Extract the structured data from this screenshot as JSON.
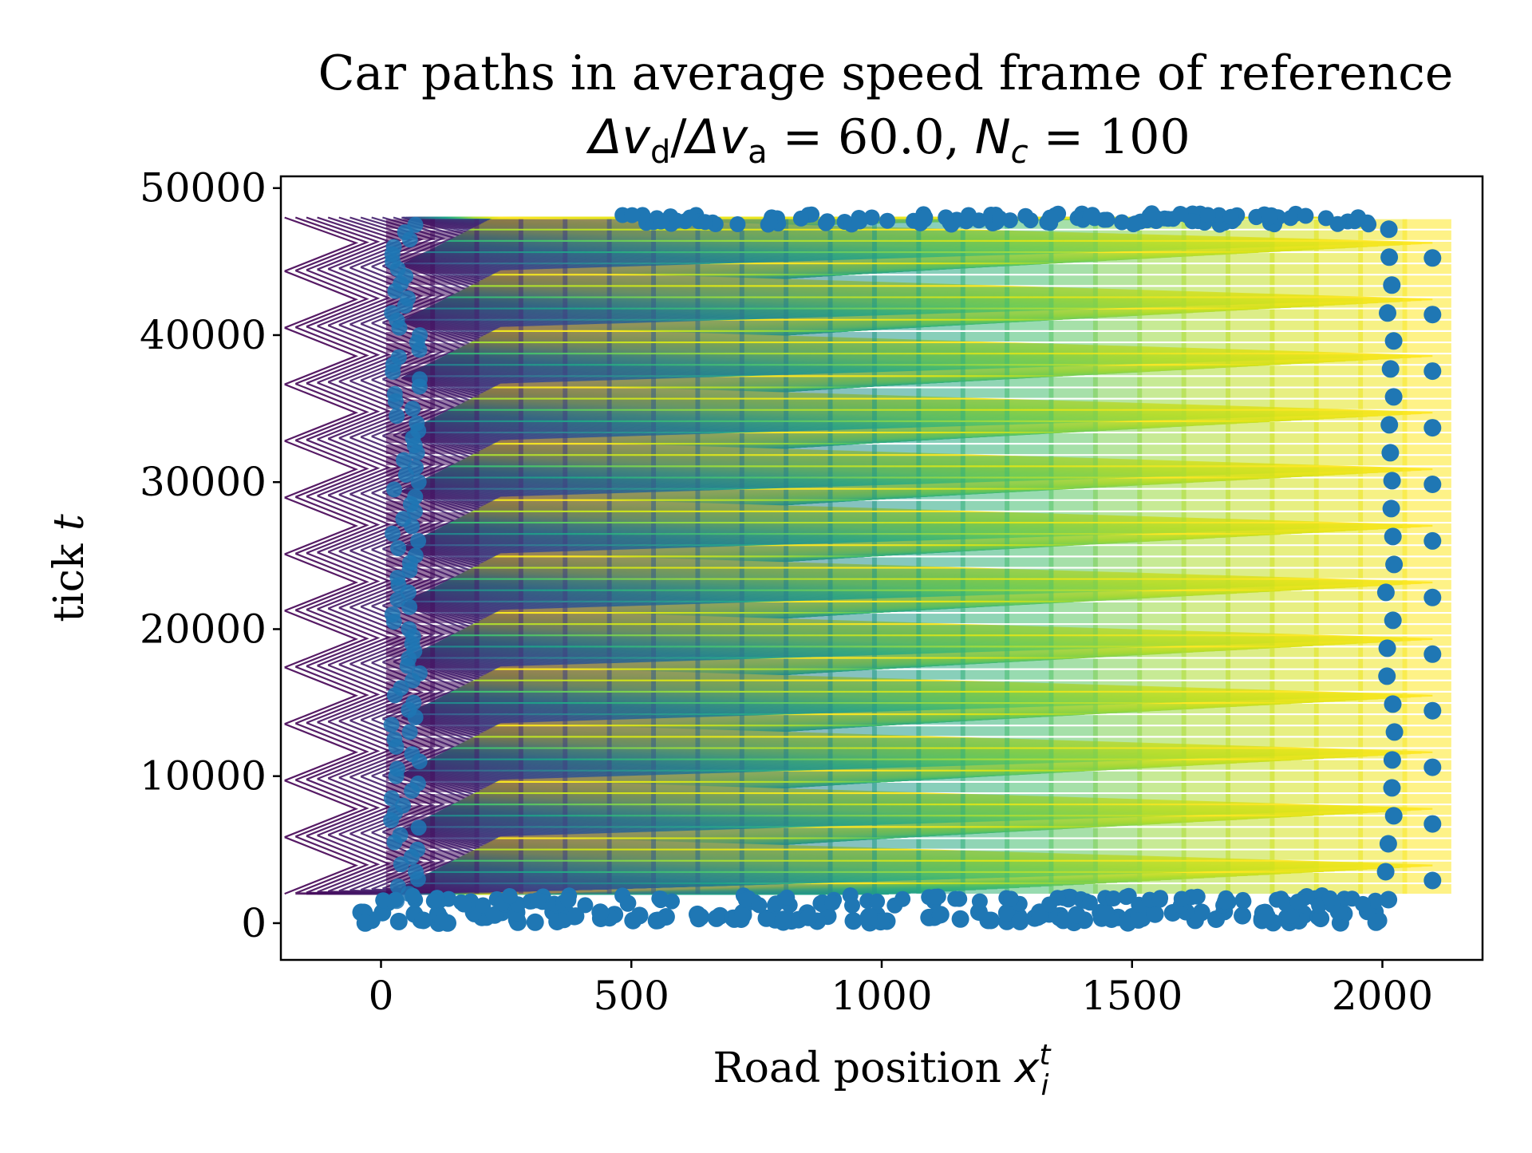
{
  "chart_data": {
    "type": "scatter",
    "title": "Car paths in average speed frame of reference",
    "subtitle": "Δv_d/Δv_a = 60.0, N_c =  100",
    "subtitle_parts": {
      "ratio_num": "Δv",
      "ratio_num_sub": "d",
      "ratio_den": "Δv",
      "ratio_den_sub": "a",
      "ratio_value": " = 60.0, ",
      "n_symbol": "N",
      "n_sub": "c",
      "n_value": " =  100"
    },
    "xlabel": "Road position x",
    "xlabel_parts": {
      "text": "Road position ",
      "symbol": "x",
      "sup": "t",
      "sub": "i"
    },
    "ylabel": "tick t",
    "ylabel_parts": {
      "text": "tick ",
      "symbol": "t"
    },
    "xlim": [
      -200,
      2200
    ],
    "ylim": [
      -2500,
      50800
    ],
    "xticks": [
      0,
      500,
      1000,
      1500,
      2000
    ],
    "xtick_labels": [
      "0",
      "500",
      "1000",
      "1500",
      "2000"
    ],
    "yticks": [
      0,
      10000,
      20000,
      30000,
      40000,
      50000
    ],
    "ytick_labels": [
      "0",
      "10000",
      "20000",
      "30000",
      "40000",
      "50000"
    ],
    "grid": false,
    "colormap": "viridis",
    "series": [
      {
        "kind": "paths",
        "description_values": {
          "x_range": [
            -50,
            2100
          ],
          "t_range": [
            2000,
            48000
          ],
          "n_cars": 100,
          "cycle_period": 3850
        }
      },
      {
        "kind": "markers",
        "color": "#1f77b4",
        "description_values": {
          "x_range": [
            -40,
            2100
          ],
          "t_range": [
            0,
            48300
          ]
        }
      }
    ],
    "colors": {
      "marker": "#1f77b4",
      "viridis_start": "#440154",
      "viridis_end": "#fde725"
    }
  }
}
